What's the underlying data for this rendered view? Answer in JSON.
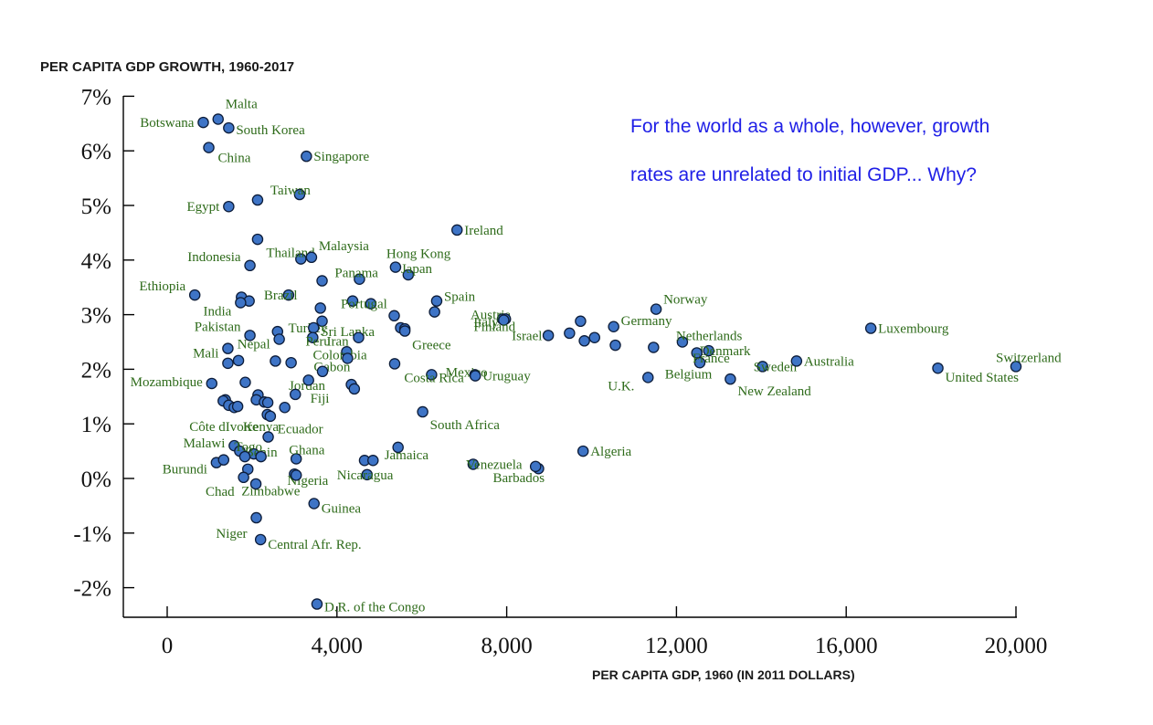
{
  "chart_data": {
    "type": "scatter",
    "title": "PER CAPITA GDP GROWTH, 1960-2017",
    "xlabel": "PER CAPITA GDP, 1960 (IN 2011 DOLLARS)",
    "ylabel": "PER CAPITA GDP GROWTH, 1960-2017",
    "xlim": [
      -1000,
      20000
    ],
    "ylim": [
      -2.5,
      7.2
    ],
    "xticks": [
      0,
      4000,
      8000,
      12000,
      16000,
      20000
    ],
    "xtick_labels": [
      "0",
      "4,000",
      "8,000",
      "12,000",
      "16,000",
      "20,000"
    ],
    "yticks": [
      7,
      6,
      5,
      4,
      3,
      2,
      1,
      0,
      -1,
      -2
    ],
    "ytick_labels": [
      "7%",
      "6%",
      "5%",
      "4%",
      "3%",
      "2%",
      "1%",
      "0%",
      "-1%",
      "-2%"
    ],
    "grid": false,
    "legend": "none",
    "colors": {
      "marker_fill": "#3e74c6",
      "marker_edge": "#0d1d3a",
      "label": "#2e6b1a",
      "annotation": "#1f1fe6"
    },
    "annotations": [
      "For the world as a whole, however, growth",
      "rates are unrelated to initial GDP... Why?"
    ],
    "points": [
      {
        "label": "Malta",
        "x": 1200,
        "y": 6.58
      },
      {
        "label": "Botswana",
        "x": 850,
        "y": 6.52
      },
      {
        "label": "South Korea",
        "x": 1450,
        "y": 6.42
      },
      {
        "label": "China",
        "x": 980,
        "y": 6.06
      },
      {
        "label": "Singapore",
        "x": 3280,
        "y": 5.9
      },
      {
        "label": "Taiwan",
        "x": 3120,
        "y": 5.2
      },
      {
        "label": "",
        "x": 2130,
        "y": 5.1
      },
      {
        "label": "Egypt",
        "x": 1450,
        "y": 4.98
      },
      {
        "label": "Ireland",
        "x": 6830,
        "y": 4.55
      },
      {
        "label": "",
        "x": 2130,
        "y": 4.38
      },
      {
        "label": "Indonesia",
        "x": 1950,
        "y": 3.9
      },
      {
        "label": "Thailand",
        "x": 3150,
        "y": 4.02
      },
      {
        "label": "Malaysia",
        "x": 3400,
        "y": 4.05
      },
      {
        "label": "Hong Kong",
        "x": 5380,
        "y": 3.87
      },
      {
        "label": "Japan",
        "x": 5680,
        "y": 3.73
      },
      {
        "label": "Panama",
        "x": 4530,
        "y": 3.65
      },
      {
        "label": "",
        "x": 3650,
        "y": 3.62
      },
      {
        "label": "Ethiopia",
        "x": 650,
        "y": 3.36
      },
      {
        "label": "Brazil",
        "x": 2860,
        "y": 3.36
      },
      {
        "label": "",
        "x": 1750,
        "y": 3.32
      },
      {
        "label": "",
        "x": 1930,
        "y": 3.25
      },
      {
        "label": "India",
        "x": 1730,
        "y": 3.22
      },
      {
        "label": "",
        "x": 4370,
        "y": 3.25
      },
      {
        "label": "Portugal",
        "x": 4800,
        "y": 3.2
      },
      {
        "label": "Spain",
        "x": 6350,
        "y": 3.25
      },
      {
        "label": "",
        "x": 6300,
        "y": 3.05
      },
      {
        "label": "",
        "x": 3610,
        "y": 3.12
      },
      {
        "label": "Turkey",
        "x": 3650,
        "y": 2.88
      },
      {
        "label": "",
        "x": 5350,
        "y": 2.98
      },
      {
        "label": "Norway",
        "x": 11520,
        "y": 3.1
      },
      {
        "label": "Austria",
        "x": 7900,
        "y": 2.92
      },
      {
        "label": "Italy",
        "x": 7970,
        "y": 2.92
      },
      {
        "label": "Finland",
        "x": 7930,
        "y": 2.9
      },
      {
        "label": "Germany",
        "x": 10520,
        "y": 2.78
      },
      {
        "label": "",
        "x": 9740,
        "y": 2.88
      },
      {
        "label": "Luxembourg",
        "x": 16580,
        "y": 2.75
      },
      {
        "label": "Sri Lanka",
        "x": 3450,
        "y": 2.76
      },
      {
        "label": "",
        "x": 5500,
        "y": 2.76
      },
      {
        "label": "",
        "x": 5600,
        "y": 2.74
      },
      {
        "label": "",
        "x": 2600,
        "y": 2.69
      },
      {
        "label": "Pakistan",
        "x": 1950,
        "y": 2.62
      },
      {
        "label": "Israel",
        "x": 8980,
        "y": 2.62
      },
      {
        "label": "",
        "x": 9480,
        "y": 2.66
      },
      {
        "label": "",
        "x": 10070,
        "y": 2.58
      },
      {
        "label": "Nepal",
        "x": 2640,
        "y": 2.55
      },
      {
        "label": "Peru",
        "x": 3430,
        "y": 2.58
      },
      {
        "label": "Iran",
        "x": 4510,
        "y": 2.58
      },
      {
        "label": "Greece",
        "x": 5600,
        "y": 2.7
      },
      {
        "label": "",
        "x": 9830,
        "y": 2.52
      },
      {
        "label": "Netherlands",
        "x": 12140,
        "y": 2.5
      },
      {
        "label": "Denmark",
        "x": 12760,
        "y": 2.34
      },
      {
        "label": "",
        "x": 11460,
        "y": 2.4
      },
      {
        "label": "Mali",
        "x": 1430,
        "y": 2.38
      },
      {
        "label": "",
        "x": 10560,
        "y": 2.44
      },
      {
        "label": "Colombia",
        "x": 4230,
        "y": 2.32
      },
      {
        "label": "Belgium",
        "x": 12480,
        "y": 2.3
      },
      {
        "label": "Gabon",
        "x": 4250,
        "y": 2.2
      },
      {
        "label": "",
        "x": 1680,
        "y": 2.16
      },
      {
        "label": "",
        "x": 2550,
        "y": 2.15
      },
      {
        "label": "",
        "x": 2920,
        "y": 2.12
      },
      {
        "label": "",
        "x": 1430,
        "y": 2.11
      },
      {
        "label": "France",
        "x": 12550,
        "y": 2.12
      },
      {
        "label": "Sweden",
        "x": 14030,
        "y": 2.05
      },
      {
        "label": "Australia",
        "x": 14830,
        "y": 2.15
      },
      {
        "label": "",
        "x": 5360,
        "y": 2.1
      },
      {
        "label": "Switzerland",
        "x": 20000,
        "y": 2.05
      },
      {
        "label": "United States",
        "x": 18160,
        "y": 2.02
      },
      {
        "label": "Jordan",
        "x": 3660,
        "y": 1.96
      },
      {
        "label": "Mexico",
        "x": 7250,
        "y": 1.9
      },
      {
        "label": "Costa Rica",
        "x": 6230,
        "y": 1.9
      },
      {
        "label": "Uruguay",
        "x": 7260,
        "y": 1.88
      },
      {
        "label": "U.K.",
        "x": 11330,
        "y": 1.85
      },
      {
        "label": "New Zealand",
        "x": 13270,
        "y": 1.82
      },
      {
        "label": "",
        "x": 3330,
        "y": 1.8
      },
      {
        "label": "Mozambique",
        "x": 1050,
        "y": 1.74
      },
      {
        "label": "",
        "x": 1840,
        "y": 1.76
      },
      {
        "label": "Fiji",
        "x": 4340,
        "y": 1.72
      },
      {
        "label": "",
        "x": 4410,
        "y": 1.64
      },
      {
        "label": "",
        "x": 3020,
        "y": 1.54
      },
      {
        "label": "",
        "x": 2140,
        "y": 1.53
      },
      {
        "label": "",
        "x": 2100,
        "y": 1.44
      },
      {
        "label": "",
        "x": 2290,
        "y": 1.4
      },
      {
        "label": "",
        "x": 2370,
        "y": 1.39
      },
      {
        "label": "",
        "x": 1370,
        "y": 1.44
      },
      {
        "label": "",
        "x": 1320,
        "y": 1.42
      },
      {
        "label": "",
        "x": 1450,
        "y": 1.34
      },
      {
        "label": "",
        "x": 1580,
        "y": 1.3
      },
      {
        "label": "",
        "x": 1660,
        "y": 1.32
      },
      {
        "label": "Ecuador",
        "x": 2770,
        "y": 1.3
      },
      {
        "label": "South Africa",
        "x": 6020,
        "y": 1.22
      },
      {
        "label": "Côte dIvoire",
        "x": 2360,
        "y": 1.17
      },
      {
        "label": "Kenya",
        "x": 2430,
        "y": 1.14
      },
      {
        "label": "",
        "x": 2380,
        "y": 0.76
      },
      {
        "label": "Algeria",
        "x": 9800,
        "y": 0.5
      },
      {
        "label": "Malawi",
        "x": 1580,
        "y": 0.6
      },
      {
        "label": "Togo",
        "x": 1710,
        "y": 0.5
      },
      {
        "label": "Benin",
        "x": 2040,
        "y": 0.45
      },
      {
        "label": "Ghana",
        "x": 3040,
        "y": 0.36
      },
      {
        "label": "Jamaica",
        "x": 5440,
        "y": 0.57
      },
      {
        "label": "",
        "x": 4650,
        "y": 0.33
      },
      {
        "label": "",
        "x": 4850,
        "y": 0.33
      },
      {
        "label": "",
        "x": 2210,
        "y": 0.4
      },
      {
        "label": "",
        "x": 1830,
        "y": 0.4
      },
      {
        "label": "Burundi",
        "x": 1160,
        "y": 0.29
      },
      {
        "label": "",
        "x": 1330,
        "y": 0.34
      },
      {
        "label": "Venezuela",
        "x": 7210,
        "y": 0.26
      },
      {
        "label": "Barbados",
        "x": 8750,
        "y": 0.18
      },
      {
        "label": "",
        "x": 8680,
        "y": 0.22
      },
      {
        "label": "",
        "x": 1900,
        "y": 0.17
      },
      {
        "label": "Nicaragua",
        "x": 4710,
        "y": 0.07
      },
      {
        "label": "Nigeria",
        "x": 3000,
        "y": 0.08
      },
      {
        "label": "Zimbabwe",
        "x": 3040,
        "y": 0.06
      },
      {
        "label": "Chad",
        "x": 1800,
        "y": 0.02
      },
      {
        "label": "",
        "x": 2090,
        "y": -0.1
      },
      {
        "label": "Guinea",
        "x": 3460,
        "y": -0.46
      },
      {
        "label": "Niger",
        "x": 2100,
        "y": -0.72
      },
      {
        "label": "Central Afr. Rep.",
        "x": 2200,
        "y": -1.12
      },
      {
        "label": "D.R. of the Congo",
        "x": 3530,
        "y": -2.3
      }
    ]
  }
}
